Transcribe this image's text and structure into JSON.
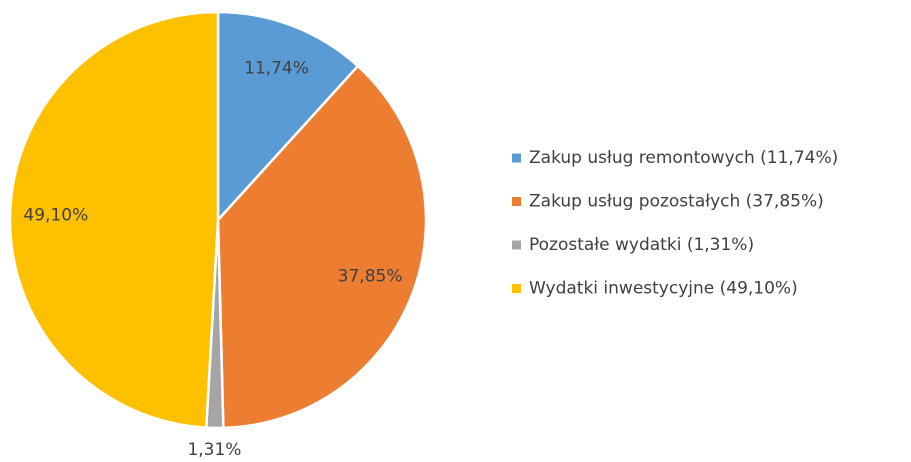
{
  "chart_data": {
    "type": "pie",
    "categories": [
      "Zakup usług remontowych (11,74%)",
      "Zakup usług pozostałych (37,85%)",
      "Pozostałe wydatki (1,31%)",
      "Wydatki inwestycyjne (49,10%)"
    ],
    "values": [
      11.74,
      37.85,
      1.31,
      49.1
    ],
    "value_labels": [
      "11,74%",
      "37,85%",
      "1,31%",
      "49,10%"
    ],
    "colors": [
      "#5b9bd5",
      "#ed7d31",
      "#a5a5a5",
      "#ffc000"
    ],
    "legend": "right"
  }
}
